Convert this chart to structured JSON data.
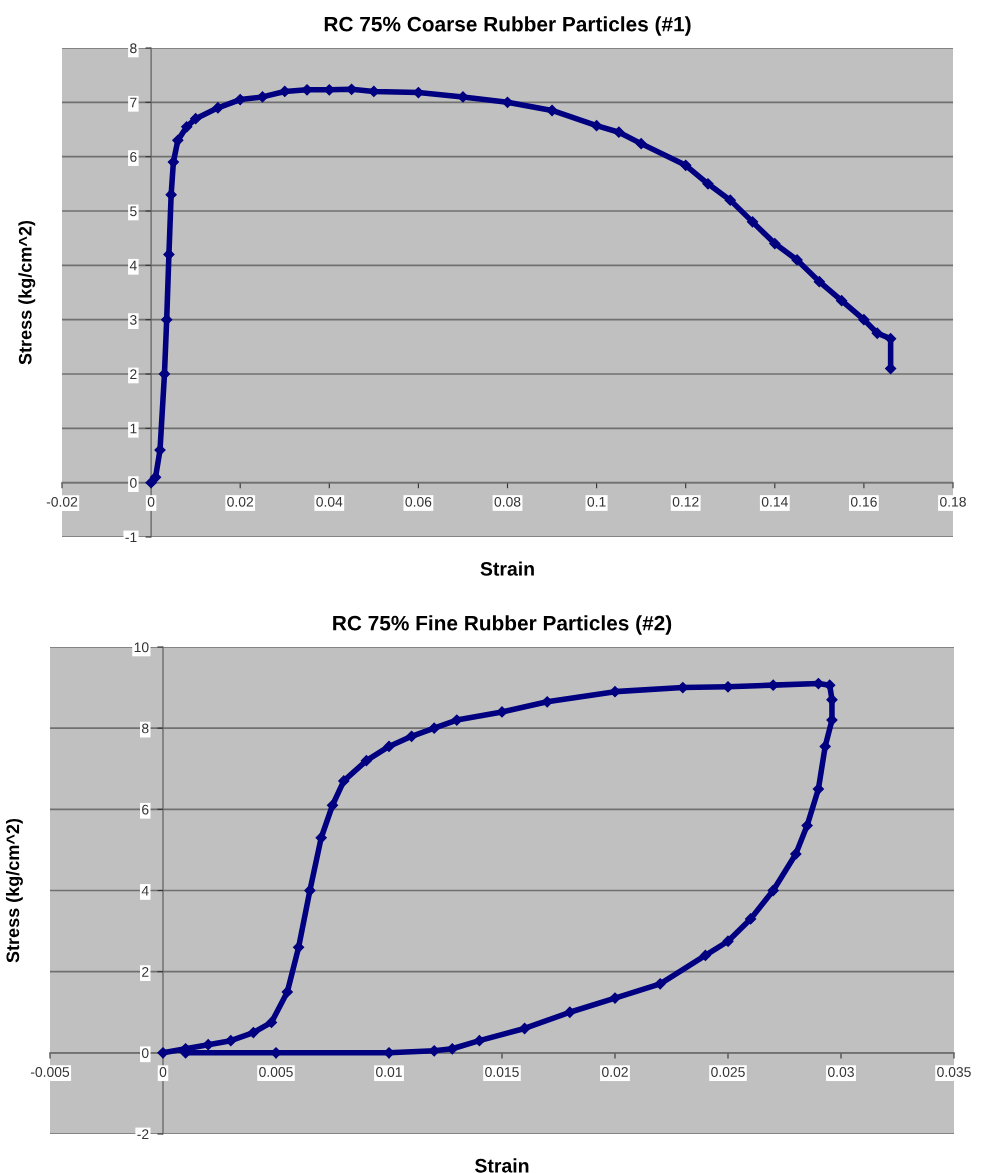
{
  "chart_data": [
    {
      "type": "line",
      "title": "RC 75% Coarse Rubber Particles (#1)",
      "xlabel": "Strain",
      "ylabel": "Stress (kg/cm^2)",
      "grid": "y",
      "marker": "diamond",
      "line_style": "solid",
      "xlim": [
        -0.02,
        0.18
      ],
      "xticks": [
        -0.02,
        0,
        0.02,
        0.04,
        0.06,
        0.08,
        0.1,
        0.12,
        0.14,
        0.16,
        0.18
      ],
      "ylim": [
        -1,
        8
      ],
      "yticks": [
        -1,
        0,
        1,
        2,
        3,
        4,
        5,
        6,
        7,
        8
      ],
      "series": [
        {
          "color": "#000080",
          "x": [
            0,
            0.001,
            0.002,
            0.003,
            0.0035,
            0.004,
            0.0045,
            0.005,
            0.006,
            0.008,
            0.01,
            0.015,
            0.02,
            0.025,
            0.03,
            0.035,
            0.04,
            0.045,
            0.05,
            0.06,
            0.07,
            0.08,
            0.09,
            0.1,
            0.105,
            0.11,
            0.12,
            0.125,
            0.13,
            0.135,
            0.14,
            0.145,
            0.15,
            0.155,
            0.16,
            0.163,
            0.166,
            0.166
          ],
          "values": [
            0,
            0.1,
            0.6,
            2.0,
            3.0,
            4.2,
            5.3,
            5.9,
            6.3,
            6.55,
            6.7,
            6.9,
            7.05,
            7.1,
            7.2,
            7.23,
            7.23,
            7.24,
            7.2,
            7.18,
            7.1,
            7.0,
            6.85,
            6.57,
            6.45,
            6.24,
            5.84,
            5.5,
            5.2,
            4.8,
            4.4,
            4.1,
            3.7,
            3.35,
            3.0,
            2.75,
            2.65,
            2.1
          ]
        }
      ]
    },
    {
      "type": "line",
      "title": "RC 75% Fine Rubber Particles (#2)",
      "xlabel": "Strain",
      "ylabel": "Stress (kg/cm^2)",
      "grid": "y",
      "marker": "diamond",
      "line_style": "solid",
      "xlim": [
        -0.005,
        0.035
      ],
      "xticks": [
        -0.005,
        0,
        0.005,
        0.01,
        0.015,
        0.02,
        0.025,
        0.03,
        0.035
      ],
      "ylim": [
        -2,
        10
      ],
      "yticks": [
        -2,
        0,
        2,
        4,
        6,
        8,
        10
      ],
      "series": [
        {
          "color": "#000080",
          "x": [
            0,
            0.001,
            0.002,
            0.003,
            0.004,
            0.0048,
            0.0055,
            0.006,
            0.0065,
            0.007,
            0.0075,
            0.008,
            0.009,
            0.01,
            0.011,
            0.012,
            0.013,
            0.015,
            0.017,
            0.02,
            0.023,
            0.025,
            0.027,
            0.029,
            0.0295,
            0.0296,
            0.0296,
            0.0293,
            0.029,
            0.0285,
            0.028,
            0.027,
            0.026,
            0.025,
            0.024,
            0.022,
            0.02,
            0.018,
            0.016,
            0.014,
            0.0128,
            0.012,
            0.01,
            0.005,
            0.001
          ],
          "values": [
            0,
            0.1,
            0.2,
            0.3,
            0.5,
            0.75,
            1.5,
            2.6,
            4.0,
            5.3,
            6.1,
            6.7,
            7.2,
            7.55,
            7.8,
            8.0,
            8.2,
            8.4,
            8.65,
            8.9,
            9.0,
            9.02,
            9.06,
            9.1,
            9.06,
            8.7,
            8.2,
            7.55,
            6.5,
            5.6,
            4.9,
            4.0,
            3.3,
            2.75,
            2.4,
            1.7,
            1.35,
            1.0,
            0.6,
            0.3,
            0.1,
            0.05,
            0,
            0,
            0
          ]
        }
      ]
    }
  ]
}
